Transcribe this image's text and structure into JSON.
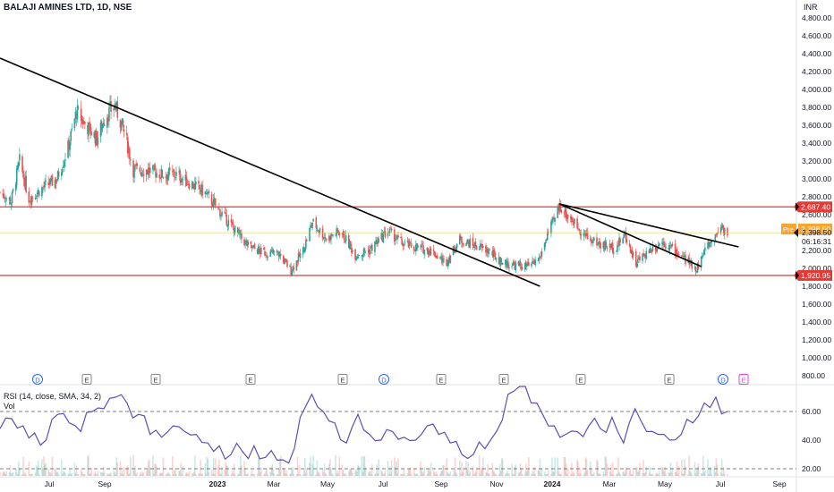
{
  "header": {
    "title": "BALAJI AMINES LTD, 1D, NSE",
    "currency": "INR"
  },
  "rsi_header": {
    "label": "RSI (14, close, SMA, 34, 2)",
    "vol_label": "Vol"
  },
  "colors": {
    "up": "#26a69a",
    "down": "#ef5350",
    "rsi_line": "#5e4fb5",
    "hline": "#e53935",
    "trendline": "#000000",
    "current_price_bg": "#131722",
    "pre_bg": "#f7a531",
    "earn_border": "#888888",
    "div_color": "#2962ff"
  },
  "price_axis": {
    "ticks": [
      "4,800.00",
      "4,600.00",
      "4,400.00",
      "4,200.00",
      "4,000.00",
      "3,800.00",
      "3,600.00",
      "3,400.00",
      "3,200.00",
      "3,000.00",
      "2,800.00",
      "2,600.00",
      "2,200.00",
      "2,000.00",
      "1,800.00",
      "1,600.00",
      "1,400.00",
      "1,200.00",
      "1,000.00",
      "800.00"
    ],
    "tick_values": [
      4800,
      4600,
      4400,
      4200,
      4000,
      3800,
      3600,
      3400,
      3200,
      3000,
      2800,
      2600,
      2200,
      2000,
      1800,
      1600,
      1400,
      1200,
      1000,
      800
    ]
  },
  "rsi_axis": {
    "ticks": [
      "60.00",
      "40.00",
      "20.00"
    ],
    "tick_values": [
      60,
      40,
      20
    ]
  },
  "time_axis": {
    "labels": [
      "Jul",
      "Sep",
      "2023",
      "Mar",
      "May",
      "Jul",
      "Sep",
      "Nov",
      "2024",
      "Mar",
      "May",
      "Jul",
      "Sep"
    ],
    "bold": [
      false,
      false,
      true,
      false,
      false,
      false,
      false,
      false,
      true,
      false,
      false,
      false,
      false
    ]
  },
  "price_labels": {
    "resistance": "2,687.40",
    "support": "1,920.95",
    "pre_tag": "Pre",
    "pre_value": "2,398.50",
    "last_price": "2,398.50",
    "countdown": "06:16:31"
  },
  "markers": [
    {
      "type": "D",
      "label": "D"
    },
    {
      "type": "E",
      "label": "E"
    },
    {
      "type": "E",
      "label": "E"
    },
    {
      "type": "E",
      "label": "E"
    },
    {
      "type": "E",
      "label": "E"
    },
    {
      "type": "D",
      "label": "D"
    },
    {
      "type": "E",
      "label": "E"
    },
    {
      "type": "E",
      "label": "E"
    },
    {
      "type": "E",
      "label": "E"
    },
    {
      "type": "E",
      "label": "E"
    },
    {
      "type": "D",
      "label": "D"
    },
    {
      "type": "E-upcoming",
      "label": "E"
    }
  ],
  "chart_data": {
    "type": "candlestick",
    "symbol": "BALAJI AMINES LTD",
    "interval": "1D",
    "exchange": "NSE",
    "x_range": [
      "2022-05-20",
      "2024-09-20"
    ],
    "ylim": [
      700,
      4900
    ],
    "horizontal_lines": [
      2687.4,
      1920.95
    ],
    "trendlines": [
      {
        "from": [
          "2022-05-20",
          4350
        ],
        "to": [
          "2023-12-20",
          1800
        ]
      },
      {
        "from": [
          "2024-01-10",
          2720
        ],
        "to": [
          "2024-07-20",
          2240
        ]
      },
      {
        "from": [
          "2024-01-10",
          2720
        ],
        "to": [
          "2024-06-10",
          2020
        ]
      }
    ],
    "price_path": [
      [
        "2022-05-20",
        2850
      ],
      [
        "2022-06-01",
        2750
      ],
      [
        "2022-06-10",
        3200
      ],
      [
        "2022-06-20",
        2780
      ],
      [
        "2022-07-05",
        2900
      ],
      [
        "2022-07-20",
        3000
      ],
      [
        "2022-08-01",
        3350
      ],
      [
        "2022-08-10",
        3750
      ],
      [
        "2022-08-20",
        3600
      ],
      [
        "2022-09-01",
        3450
      ],
      [
        "2022-09-10",
        3700
      ],
      [
        "2022-09-20",
        3820
      ],
      [
        "2022-10-01",
        3500
      ],
      [
        "2022-10-10",
        3100
      ],
      [
        "2022-10-25",
        3100
      ],
      [
        "2022-11-10",
        3050
      ],
      [
        "2022-11-25",
        3050
      ],
      [
        "2022-12-10",
        2950
      ],
      [
        "2022-12-25",
        2850
      ],
      [
        "2023-01-10",
        2650
      ],
      [
        "2023-01-25",
        2450
      ],
      [
        "2023-02-10",
        2250
      ],
      [
        "2023-02-25",
        2180
      ],
      [
        "2023-03-15",
        2160
      ],
      [
        "2023-03-28",
        1980
      ],
      [
        "2023-04-10",
        2200
      ],
      [
        "2023-04-20",
        2520
      ],
      [
        "2023-05-05",
        2330
      ],
      [
        "2023-05-20",
        2420
      ],
      [
        "2023-06-05",
        2150
      ],
      [
        "2023-06-20",
        2200
      ],
      [
        "2023-07-10",
        2420
      ],
      [
        "2023-07-25",
        2280
      ],
      [
        "2023-08-10",
        2230
      ],
      [
        "2023-08-25",
        2200
      ],
      [
        "2023-09-10",
        2060
      ],
      [
        "2023-09-25",
        2320
      ],
      [
        "2023-10-10",
        2260
      ],
      [
        "2023-10-25",
        2200
      ],
      [
        "2023-11-10",
        2060
      ],
      [
        "2023-11-25",
        2030
      ],
      [
        "2023-12-10",
        2020
      ],
      [
        "2023-12-20",
        2120
      ],
      [
        "2023-12-28",
        2380
      ],
      [
        "2024-01-05",
        2550
      ],
      [
        "2024-01-10",
        2700
      ],
      [
        "2024-01-25",
        2520
      ],
      [
        "2024-02-10",
        2330
      ],
      [
        "2024-02-25",
        2260
      ],
      [
        "2024-03-10",
        2230
      ],
      [
        "2024-03-20",
        2380
      ],
      [
        "2024-04-01",
        2060
      ],
      [
        "2024-04-15",
        2200
      ],
      [
        "2024-04-30",
        2300
      ],
      [
        "2024-05-15",
        2180
      ],
      [
        "2024-05-28",
        2060
      ],
      [
        "2024-06-05",
        2000
      ],
      [
        "2024-06-15",
        2230
      ],
      [
        "2024-06-25",
        2360
      ],
      [
        "2024-07-01",
        2480
      ],
      [
        "2024-07-08",
        2398.5
      ]
    ],
    "rsi": {
      "title": "RSI (14, close, SMA, 34, 2)",
      "ylim": [
        15,
        85
      ],
      "dashed_levels": [
        60,
        20
      ],
      "values": [
        48,
        55,
        50,
        45,
        40,
        58,
        52,
        46,
        60,
        62,
        70,
        66,
        58,
        44,
        42,
        50,
        46,
        44,
        38,
        36,
        30,
        32,
        36,
        28,
        26,
        24,
        56,
        72,
        60,
        52,
        38,
        58,
        44,
        40,
        46,
        42,
        40,
        50,
        44,
        38,
        30,
        30,
        34,
        46,
        72,
        82,
        66,
        58,
        50,
        44,
        46,
        50,
        48,
        56,
        38,
        62,
        46,
        44,
        40,
        44,
        52,
        66,
        70,
        60
      ]
    },
    "volume": {
      "label": "Vol"
    }
  }
}
